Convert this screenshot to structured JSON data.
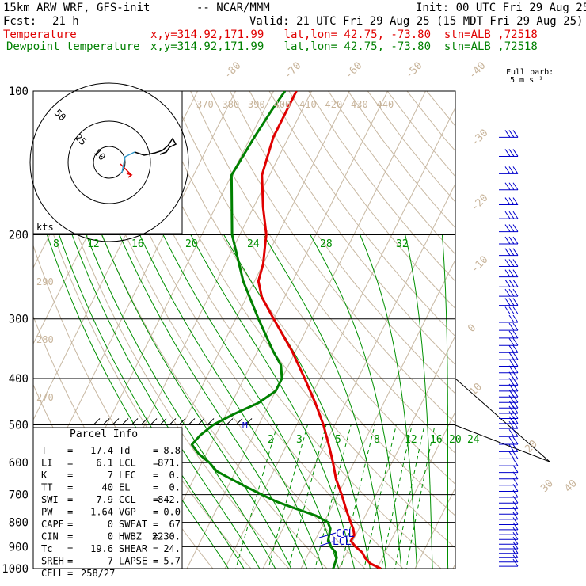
{
  "header": {
    "model": "15km ARW WRF, GFS-init",
    "org": "-- NCAR/MMM",
    "init": "Init: 00 UTC Fri 29 Aug 25",
    "fcst_label": "Fcst:",
    "fcst_value": "21 h",
    "valid": "Valid: 21 UTC Fri 29 Aug 25 (15 MDT Fri 29 Aug 25)",
    "temp_label": "Temperature",
    "temp_info": "x,y=314.92,171.99   lat,lon= 42.75, -73.80  stn=ALB ,72518",
    "dew_label": "Dewpoint temperature",
    "dew_info": "x,y=314.92,171.99   lat,lon= 42.75, -73.80  stn=ALB ,72518"
  },
  "barb_label": {
    "line1": "Full barb:",
    "line2": "5 m s⁻¹"
  },
  "hodograph": {
    "ring_labels": [
      "50",
      "25",
      "10"
    ],
    "units": "kts"
  },
  "parcel_title": "Parcel Info",
  "parcel_info": [
    {
      "l": "T",
      "lv": "17.4",
      "r": "Td",
      "rv": "8.8"
    },
    {
      "l": "LI",
      "lv": "6.1",
      "r": "LCL",
      "rv": "871."
    },
    {
      "l": "K",
      "lv": "7",
      "r": "LFC",
      "rv": "0."
    },
    {
      "l": "TT",
      "lv": "40",
      "r": "EL",
      "rv": "0."
    },
    {
      "l": "SWI",
      "lv": "7.9",
      "r": "CCL",
      "rv": "842."
    },
    {
      "l": "PW",
      "lv": "1.64",
      "r": "VGP",
      "rv": "0.0"
    },
    {
      "l": "CAPE",
      "lv": "0",
      "r": "SWEAT",
      "rv": "67"
    },
    {
      "l": "CIN",
      "lv": "0",
      "r": "HWBZ",
      "rv": "2230."
    },
    {
      "l": "Tc",
      "lv": "19.6",
      "r": "SHEAR",
      "rv": "24."
    },
    {
      "l": "SREH",
      "lv": "7",
      "r": "LAPSE",
      "rv": "5.7"
    },
    {
      "l": "CELL",
      "lv": "258/27",
      "r": "",
      "rv": ""
    }
  ],
  "level_markers": {
    "ccl": "CCL",
    "lcl": "LCL",
    "m": "M"
  },
  "chart_data": {
    "type": "line",
    "diagram": "skew-T log-p",
    "y_scale": "log",
    "y_axis_pressure_hpa": [
      100,
      200,
      300,
      400,
      500,
      600,
      700,
      800,
      900,
      1000
    ],
    "y_tick_labels": [
      "100",
      "200",
      "300",
      "400",
      "500",
      "600",
      "700",
      "800",
      "900",
      "1000"
    ],
    "isotherm_labels_degC": [
      "-80",
      "-70",
      "-60",
      "-50",
      "-40",
      "-30",
      "-20",
      "-10",
      "0",
      "10",
      "20",
      "30",
      "40"
    ],
    "theta_labels_K": [
      "370",
      "380",
      "390",
      "400",
      "410",
      "420",
      "430",
      "440"
    ],
    "theta_side_labels_K": [
      "290",
      "280",
      "270"
    ],
    "mixing_ratio_labels_200": [
      "8",
      "12",
      "16",
      "20",
      "24",
      "28",
      "32"
    ],
    "mixing_ratio_labels_500": [
      "2",
      "3",
      "5",
      "8",
      "12",
      "16",
      "20",
      "24"
    ],
    "series": [
      {
        "name": "Temperature",
        "color": "#e00000",
        "points": [
          [
            1000,
            21
          ],
          [
            975,
            17.5
          ],
          [
            950,
            15.5
          ],
          [
            925,
            14
          ],
          [
            900,
            11.5
          ],
          [
            875,
            9.5
          ],
          [
            850,
            9.6
          ],
          [
            825,
            8.5
          ],
          [
            800,
            7
          ],
          [
            750,
            4
          ],
          [
            700,
            1
          ],
          [
            650,
            -2.5
          ],
          [
            600,
            -5.5
          ],
          [
            550,
            -9
          ],
          [
            500,
            -13
          ],
          [
            450,
            -18
          ],
          [
            400,
            -24
          ],
          [
            350,
            -31
          ],
          [
            300,
            -40
          ],
          [
            270,
            -46
          ],
          [
            250,
            -49
          ],
          [
            230,
            -50
          ],
          [
            210,
            -52
          ],
          [
            200,
            -53
          ],
          [
            175,
            -57.5
          ],
          [
            150,
            -62
          ],
          [
            125,
            -64
          ],
          [
            110,
            -64
          ],
          [
            100,
            -64
          ]
        ]
      },
      {
        "name": "Dewpoint temperature",
        "color": "#008000",
        "points": [
          [
            1000,
            8.5
          ],
          [
            950,
            8
          ],
          [
            925,
            7
          ],
          [
            900,
            5
          ],
          [
            875,
            3.5
          ],
          [
            850,
            3
          ],
          [
            825,
            2.5
          ],
          [
            800,
            1
          ],
          [
            775,
            -3
          ],
          [
            750,
            -9
          ],
          [
            725,
            -15
          ],
          [
            700,
            -20
          ],
          [
            675,
            -25
          ],
          [
            650,
            -30
          ],
          [
            625,
            -35
          ],
          [
            600,
            -38
          ],
          [
            575,
            -42
          ],
          [
            550,
            -45
          ],
          [
            525,
            -44
          ],
          [
            500,
            -42
          ],
          [
            475,
            -38
          ],
          [
            450,
            -33
          ],
          [
            425,
            -30
          ],
          [
            400,
            -30
          ],
          [
            375,
            -32
          ],
          [
            350,
            -36
          ],
          [
            300,
            -44
          ],
          [
            250,
            -53
          ],
          [
            200,
            -62
          ],
          [
            150,
            -70
          ],
          [
            125,
            -69
          ],
          [
            110,
            -68
          ],
          [
            100,
            -67
          ]
        ]
      }
    ]
  }
}
